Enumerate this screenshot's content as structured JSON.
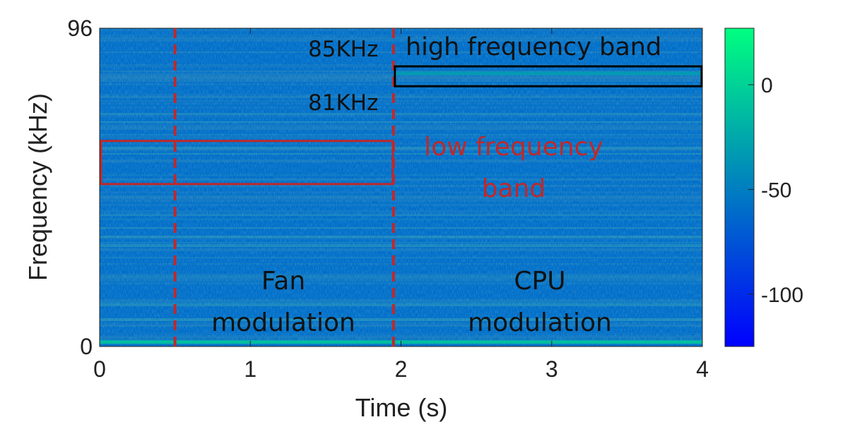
{
  "chart_data": {
    "type": "heatmap",
    "xlabel": "Time (s)",
    "ylabel": "Frequency (kHz)",
    "xlim": [
      0,
      4
    ],
    "ylim": [
      0,
      96
    ],
    "x_ticks": [
      "0",
      "1",
      "2",
      "3",
      "4"
    ],
    "y_ticks": [
      "0",
      "96"
    ],
    "colorbar": {
      "range": [
        -125,
        27
      ],
      "ticks": [
        0,
        -50,
        -100
      ],
      "tick_labels": [
        "0",
        "-50",
        "-100"
      ],
      "colormap": "winter",
      "colors": [
        "#0000ff",
        "#00ff80"
      ]
    },
    "background_level_db": -60,
    "bright_bands": [
      {
        "y": 0.8,
        "level_db": -5
      },
      {
        "y": 82.5,
        "level_db": -28,
        "x_range": [
          1.95,
          4
        ]
      }
    ],
    "markers": {
      "dashed_lines_x": [
        0.5,
        1.95
      ],
      "dashed_color": "#c0282a"
    },
    "regions": [
      {
        "name": "low frequency band",
        "x": [
          0,
          1.95
        ],
        "y": [
          49,
          62
        ],
        "color": "#c0282a"
      },
      {
        "name": "high frequency band",
        "x": [
          1.95,
          4
        ],
        "y": [
          78.5,
          84.5
        ],
        "color": "#000000"
      }
    ],
    "annotations": {
      "freq_upper": "85KHz",
      "freq_lower": "81KHz",
      "high_band": "high frequency band",
      "low_band_line1": "low frequency",
      "low_band_line2": "band",
      "fan_line1": "Fan",
      "fan_line2": "modulation",
      "cpu_line1": "CPU",
      "cpu_line2": "modulation"
    }
  }
}
